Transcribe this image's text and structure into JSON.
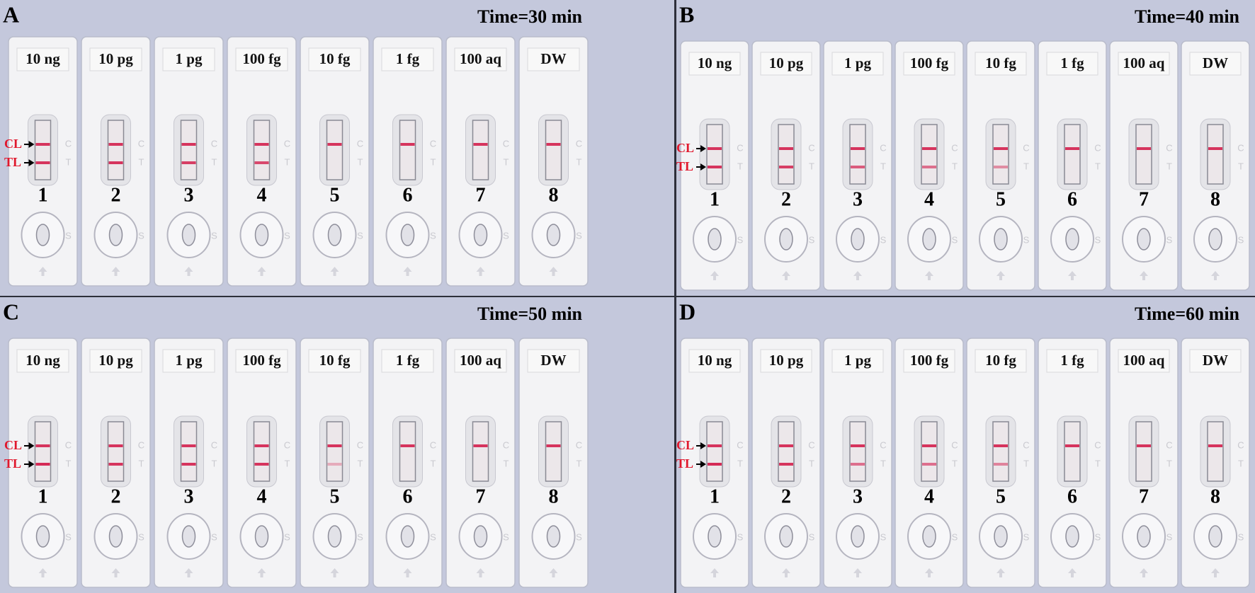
{
  "strip_letters": {
    "control": "C",
    "test": "T",
    "sample": "S"
  },
  "panels": [
    {
      "label": "A",
      "time": "Time=30 min",
      "control_line": "CL",
      "test_line": "TL",
      "strips": [
        {
          "label": "10 ng",
          "number": "1"
        },
        {
          "label": "10 pg",
          "number": "2"
        },
        {
          "label": "1 pg",
          "number": "3"
        },
        {
          "label": "100 fg",
          "number": "4"
        },
        {
          "label": "10 fg",
          "number": "5"
        },
        {
          "label": "1 fg",
          "number": "6"
        },
        {
          "label": "100 aq",
          "number": "7"
        },
        {
          "label": "DW",
          "number": "8"
        }
      ]
    },
    {
      "label": "B",
      "time": "Time=40 min",
      "control_line": "CL",
      "test_line": "TL",
      "strips": [
        {
          "label": "10 ng",
          "number": "1"
        },
        {
          "label": "10 pg",
          "number": "2"
        },
        {
          "label": "1 pg",
          "number": "3"
        },
        {
          "label": "100 fg",
          "number": "4"
        },
        {
          "label": "10 fg",
          "number": "5"
        },
        {
          "label": "1 fg",
          "number": "6"
        },
        {
          "label": "100 aq",
          "number": "7"
        },
        {
          "label": "DW",
          "number": "8"
        }
      ]
    },
    {
      "label": "C",
      "time": "Time=50 min",
      "control_line": "CL",
      "test_line": "TL",
      "strips": [
        {
          "label": "10 ng",
          "number": "1"
        },
        {
          "label": "10 pg",
          "number": "2"
        },
        {
          "label": "1 pg",
          "number": "3"
        },
        {
          "label": "100 fg",
          "number": "4"
        },
        {
          "label": "10 fg",
          "number": "5"
        },
        {
          "label": "1 fg",
          "number": "6"
        },
        {
          "label": "100 aq",
          "number": "7"
        },
        {
          "label": "DW",
          "number": "8"
        }
      ]
    },
    {
      "label": "D",
      "time": "Time=60 min",
      "control_line": "CL",
      "test_line": "TL",
      "strips": [
        {
          "label": "10 ng",
          "number": "1"
        },
        {
          "label": "10 pg",
          "number": "2"
        },
        {
          "label": "1 pg",
          "number": "3"
        },
        {
          "label": "100 fg",
          "number": "4"
        },
        {
          "label": "10 fg",
          "number": "5"
        },
        {
          "label": "1 fg",
          "number": "6"
        },
        {
          "label": "100 aq",
          "number": "7"
        },
        {
          "label": "DW",
          "number": "8"
        }
      ]
    }
  ]
}
